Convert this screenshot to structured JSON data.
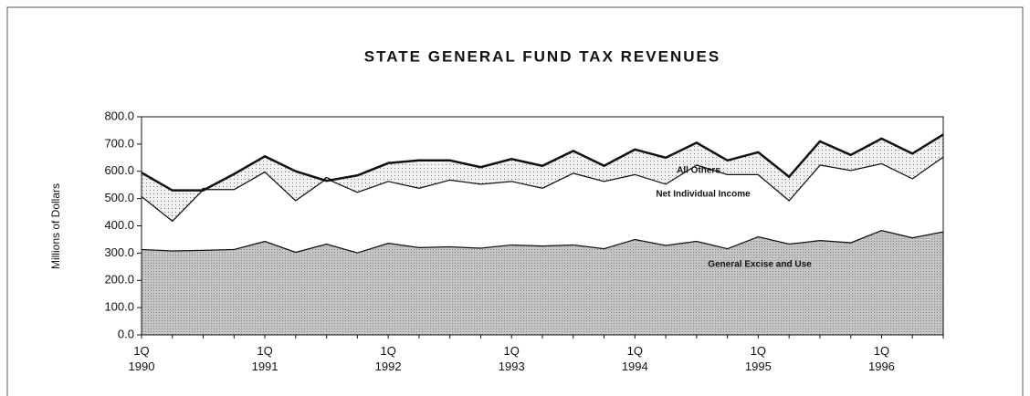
{
  "chart_data": {
    "type": "stacked_area",
    "title": "STATE GENERAL FUND TAX REVENUES",
    "y_label": "Millions of Dollars",
    "categories": [
      "1Q\n1990",
      null,
      null,
      null,
      "1Q\n1991",
      null,
      null,
      null,
      "1Q\n1992",
      null,
      null,
      null,
      "1Q\n1993",
      null,
      null,
      null,
      "1Q\n1994",
      null,
      null,
      null,
      "1Q\n1995",
      null,
      null,
      null,
      "1Q\n1996",
      null,
      null
    ],
    "series": [
      {
        "name": "General Excise and Use",
        "color": "#b8b8b8",
        "values": [
          315,
          310,
          312,
          315,
          345,
          305,
          335,
          303,
          338,
          322,
          325,
          320,
          332,
          328,
          332,
          318,
          352,
          330,
          345,
          318,
          362,
          335,
          348,
          340,
          385,
          358,
          380
        ]
      },
      {
        "name": "Net Individual Income",
        "color": "#ffffff",
        "values": [
          195,
          110,
          223,
          220,
          255,
          190,
          240,
          222,
          227,
          218,
          245,
          235,
          233,
          212,
          263,
          247,
          238,
          225,
          280,
          272,
          228,
          160,
          277,
          265,
          245,
          217,
          275
        ]
      },
      {
        "name": "All Others",
        "color": "#dcdcdc",
        "values": [
          85,
          110,
          -5,
          55,
          55,
          105,
          -10,
          60,
          65,
          100,
          70,
          60,
          80,
          80,
          80,
          55,
          90,
          95,
          80,
          50,
          80,
          85,
          85,
          55,
          90,
          90,
          80
        ]
      }
    ],
    "ylim": [
      0,
      800
    ],
    "yticks": [
      {
        "value": 0,
        "label": "0.0"
      },
      {
        "value": 100,
        "label": "100.0"
      },
      {
        "value": 200,
        "label": "200.0"
      },
      {
        "value": 300,
        "label": "300.0"
      },
      {
        "value": 400,
        "label": "400.0"
      },
      {
        "value": 500,
        "label": "500.0"
      },
      {
        "value": 600,
        "label": "600.0"
      },
      {
        "value": 700,
        "label": "700.0"
      },
      {
        "value": 800,
        "label": "800.0"
      }
    ]
  }
}
